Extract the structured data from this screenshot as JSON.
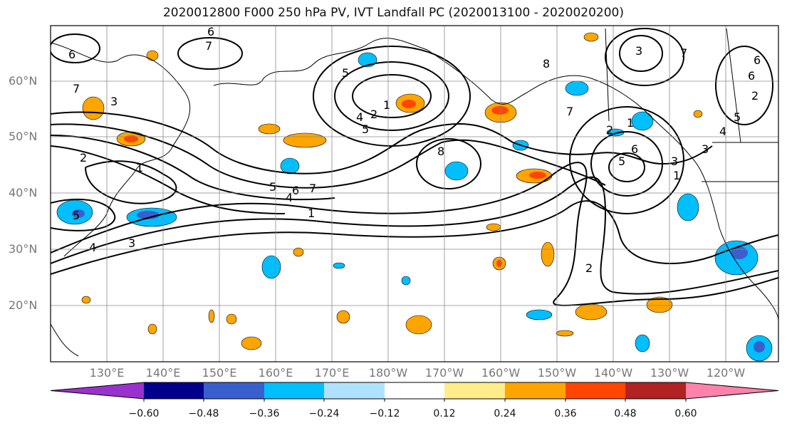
{
  "title": "2020012800 F000 250 hPa PV, IVT Landfall PC (2020013100 - 2020020200)",
  "latitude_labels": [
    "60°N",
    "50°N",
    "40°N",
    "30°N",
    "20°N"
  ],
  "longitude_labels": [
    "130°E",
    "140°E",
    "150°E",
    "160°E",
    "170°E",
    "180°W",
    "170°W",
    "160°W",
    "150°W",
    "140°W",
    "130°W",
    "120°W"
  ],
  "contour_labels": [
    "6",
    "7",
    "6",
    "5",
    "2",
    "1",
    "4",
    "5",
    "8",
    "1",
    "2",
    "3",
    "7",
    "8",
    "7",
    "6",
    "5",
    "3",
    "2",
    "1",
    "5",
    "6",
    "7",
    "4",
    "1",
    "5",
    "4",
    "3",
    "3",
    "2",
    "6",
    "7",
    "3",
    "1",
    "2",
    "6",
    "5",
    "4"
  ],
  "colorbar": {
    "tick_labels": [
      "−0.60",
      "−0.48",
      "−0.36",
      "−0.24",
      "−0.12",
      "0.12",
      "0.24",
      "0.36",
      "0.48",
      "0.60"
    ],
    "colors": [
      "#9932cc",
      "#00008b",
      "#3a5fcd",
      "#00bfff",
      "#b0e2ff",
      "#ffffff",
      "#ffec8b",
      "#ffa500",
      "#ff4500",
      "#b22222",
      "#ff82ab"
    ]
  }
}
